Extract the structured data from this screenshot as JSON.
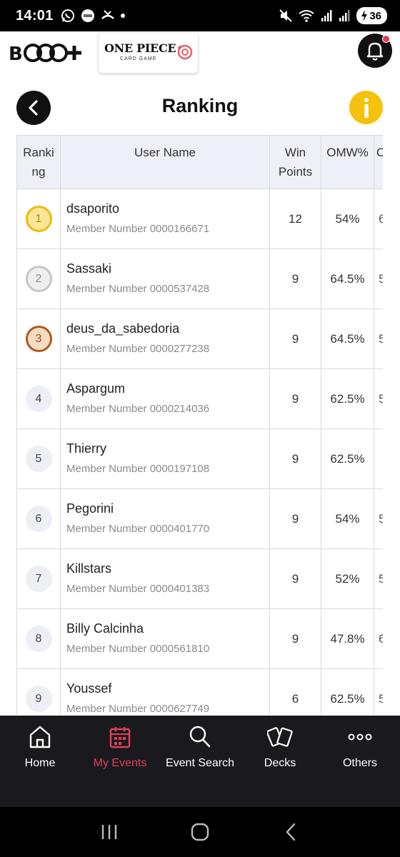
{
  "status_bar": {
    "time": "14:01",
    "battery": "36",
    "icons": [
      "whatsapp-icon",
      "sticker-app-icon",
      "missed-call-icon",
      "notification-dot-icon",
      "mute-icon",
      "wifi-icon",
      "signal-icon",
      "signal-icon",
      "battery-charging-icon"
    ]
  },
  "header": {
    "brand_logo_icon": "bandai-tcg-plus-logo",
    "game_logo": {
      "title": "ONE PIECE",
      "subtitle": "CARD GAME"
    },
    "notification_icon": "bell-icon"
  },
  "page": {
    "title": "Ranking",
    "back_icon": "chevron-left-icon",
    "info_icon": "info-icon"
  },
  "table": {
    "headers": {
      "rank_line1": "Ranki",
      "rank_line2": "ng",
      "user": "User Name",
      "wp_line1": "Win",
      "wp_line2": "Points",
      "omw": "OMW%",
      "extra": "O"
    },
    "rows": [
      {
        "rank": "1",
        "name": "dsaporito",
        "member": "Member Number 0000166671",
        "wp": "12",
        "omw": "54%",
        "extra": "6"
      },
      {
        "rank": "2",
        "name": "Sassaki",
        "member": "Member Number 0000537428",
        "wp": "9",
        "omw": "64.5%",
        "extra": "5"
      },
      {
        "rank": "3",
        "name": "deus_da_sabedoria",
        "member": "Member Number 0000277238",
        "wp": "9",
        "omw": "64.5%",
        "extra": "5"
      },
      {
        "rank": "4",
        "name": "Aspargum",
        "member": "Member Number 0000214036",
        "wp": "9",
        "omw": "62.5%",
        "extra": "5"
      },
      {
        "rank": "5",
        "name": "Thierry",
        "member": "Member Number 0000197108",
        "wp": "9",
        "omw": "62.5%",
        "extra": ""
      },
      {
        "rank": "6",
        "name": "Pegorini",
        "member": "Member Number 0000401770",
        "wp": "9",
        "omw": "54%",
        "extra": "5"
      },
      {
        "rank": "7",
        "name": "Killstars",
        "member": "Member Number 0000401383",
        "wp": "9",
        "omw": "52%",
        "extra": "5"
      },
      {
        "rank": "8",
        "name": "Billy Calcinha",
        "member": "Member Number 0000561810",
        "wp": "9",
        "omw": "47.8%",
        "extra": "6"
      },
      {
        "rank": "9",
        "name": "Youssef",
        "member": "Member Number 0000627749",
        "wp": "6",
        "omw": "62.5%",
        "extra": "5"
      }
    ]
  },
  "bottom_nav": {
    "items": [
      {
        "label": "Home",
        "icon": "home-icon"
      },
      {
        "label": "My Events",
        "icon": "calendar-icon",
        "active": true
      },
      {
        "label": "Event Search",
        "icon": "search-icon"
      },
      {
        "label": "Decks",
        "icon": "cards-icon"
      },
      {
        "label": "Others",
        "icon": "more-dots-icon"
      }
    ]
  },
  "system_nav": {
    "buttons": [
      "recents-button",
      "home-button",
      "back-button"
    ]
  },
  "colors": {
    "accent_active": "#e23e57",
    "info_yellow": "#f4c20d",
    "header_bg": "#eef0f7",
    "nav_bg": "#1a1a1e",
    "gold": "#e9bb10",
    "silver": "#c6c6c6",
    "bronze": "#b1581f"
  }
}
